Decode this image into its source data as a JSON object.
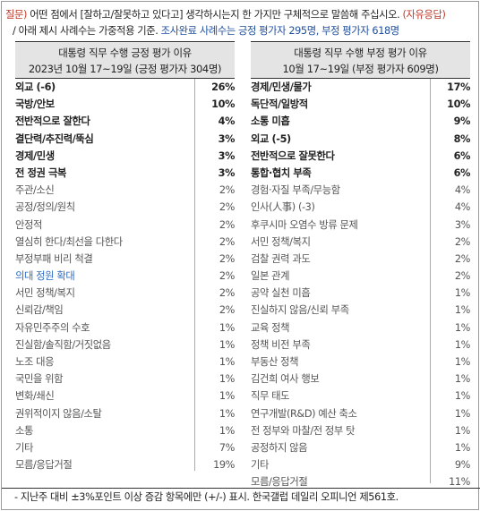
{
  "question": {
    "prefix": "질문)",
    "text": " 어떤 점에서 [잘하고/잘못하고 있다고] 생각하시는지 한 가지만 구체적으로 말씀해 주십시오.",
    "tag": "(자유응답)",
    "note_prefix": "/ 아래 제시 사례수는 가중적용 기준.",
    "note_highlight": "조사완료 사례수는 긍정 평가자 295명, 부정 평가자 618명"
  },
  "left_panel": {
    "title": "대통령 직무 수행 긍정 평가 이유",
    "subtitle": "2023년 10월 17~19일 (긍정 평가자 304명)",
    "rows": [
      {
        "label": "외교 (-6)",
        "pct": "26%",
        "style": "bold"
      },
      {
        "label": "국방/안보",
        "pct": "10%",
        "style": "bold"
      },
      {
        "label": "전반적으로 잘한다",
        "pct": "4%",
        "style": "bold"
      },
      {
        "label": "결단력/추진력/뚝심",
        "pct": "3%",
        "style": "bold"
      },
      {
        "label": "경제/민생",
        "pct": "3%",
        "style": "bold"
      },
      {
        "label": "전 정권 극복",
        "pct": "3%",
        "style": "bold"
      },
      {
        "label": "주관/소신",
        "pct": "2%",
        "style": "muted"
      },
      {
        "label": "공정/정의/원칙",
        "pct": "2%",
        "style": "muted"
      },
      {
        "label": "안정적",
        "pct": "2%",
        "style": "muted"
      },
      {
        "label": "열심히 한다/최선을 다한다",
        "pct": "2%",
        "style": "muted"
      },
      {
        "label": "부정부패 비리 척결",
        "pct": "2%",
        "style": "muted"
      },
      {
        "label": "의대 정원 확대",
        "pct": "2%",
        "style": "linkish"
      },
      {
        "label": "서민 정책/복지",
        "pct": "2%",
        "style": "muted"
      },
      {
        "label": "신뢰감/책임",
        "pct": "2%",
        "style": "muted"
      },
      {
        "label": "자유민주주의 수호",
        "pct": "1%",
        "style": "muted"
      },
      {
        "label": "진실함/솔직함/거짓없음",
        "pct": "1%",
        "style": "muted"
      },
      {
        "label": "노조 대응",
        "pct": "1%",
        "style": "muted"
      },
      {
        "label": "국민을 위함",
        "pct": "1%",
        "style": "muted"
      },
      {
        "label": "변화/쇄신",
        "pct": "1%",
        "style": "muted"
      },
      {
        "label": "권위적이지 않음/소탈",
        "pct": "1%",
        "style": "muted"
      },
      {
        "label": "소통",
        "pct": "1%",
        "style": "muted"
      },
      {
        "label": "기타",
        "pct": "7%",
        "style": "muted"
      },
      {
        "label": "모름/응답거절",
        "pct": "19%",
        "style": "muted"
      }
    ]
  },
  "right_panel": {
    "title": "대통령 직무 수행 부정 평가 이유",
    "subtitle": "10월 17~19일 (부정 평가자 609명)",
    "rows": [
      {
        "label": "경제/민생/물가",
        "pct": "17%",
        "style": "bold"
      },
      {
        "label": "독단적/일방적",
        "pct": "10%",
        "style": "bold"
      },
      {
        "label": "소통 미흡",
        "pct": "9%",
        "style": "bold"
      },
      {
        "label": "외교 (-5)",
        "pct": "8%",
        "style": "bold"
      },
      {
        "label": "전반적으로 잘못한다",
        "pct": "6%",
        "style": "bold"
      },
      {
        "label": "통합·협치 부족",
        "pct": "6%",
        "style": "bold"
      },
      {
        "label": "경험·자질 부족/무능함",
        "pct": "4%",
        "style": "muted"
      },
      {
        "label": "인사(人事) (-3)",
        "pct": "4%",
        "style": "muted"
      },
      {
        "label": "후쿠시마 오염수 방류 문제",
        "pct": "3%",
        "style": "muted"
      },
      {
        "label": "서민 정책/복지",
        "pct": "2%",
        "style": "muted"
      },
      {
        "label": "검찰 권력 과도",
        "pct": "2%",
        "style": "muted"
      },
      {
        "label": "일본 관계",
        "pct": "2%",
        "style": "muted"
      },
      {
        "label": "공약 실천 미흡",
        "pct": "1%",
        "style": "muted"
      },
      {
        "label": "진실하지 않음/신뢰 부족",
        "pct": "1%",
        "style": "muted"
      },
      {
        "label": "교육 정책",
        "pct": "1%",
        "style": "muted"
      },
      {
        "label": "정책 비전 부족",
        "pct": "1%",
        "style": "muted"
      },
      {
        "label": "부동산 정책",
        "pct": "1%",
        "style": "muted"
      },
      {
        "label": "김건희 여사 행보",
        "pct": "1%",
        "style": "muted"
      },
      {
        "label": "직무 태도",
        "pct": "1%",
        "style": "muted"
      },
      {
        "label": "연구개발(R&D) 예산 축소",
        "pct": "1%",
        "style": "muted"
      },
      {
        "label": "전 정부와 마찰/전 정부 탓",
        "pct": "1%",
        "style": "muted"
      },
      {
        "label": "공정하지 않음",
        "pct": "1%",
        "style": "muted"
      },
      {
        "label": "기타",
        "pct": "9%",
        "style": "muted"
      },
      {
        "label": "모름/응답거절",
        "pct": "11%",
        "style": "muted"
      }
    ]
  },
  "footer": {
    "text": "- 지난주 대비 ±3%포인트 이상 증감 항목에만 (+/-) 표시. 한국갤럽 데일리 오피니언 제561호."
  },
  "colors": {
    "accent_red": "#c0392b",
    "accent_blue": "#1f4e9c",
    "header_bg": "#e4e4e4"
  }
}
